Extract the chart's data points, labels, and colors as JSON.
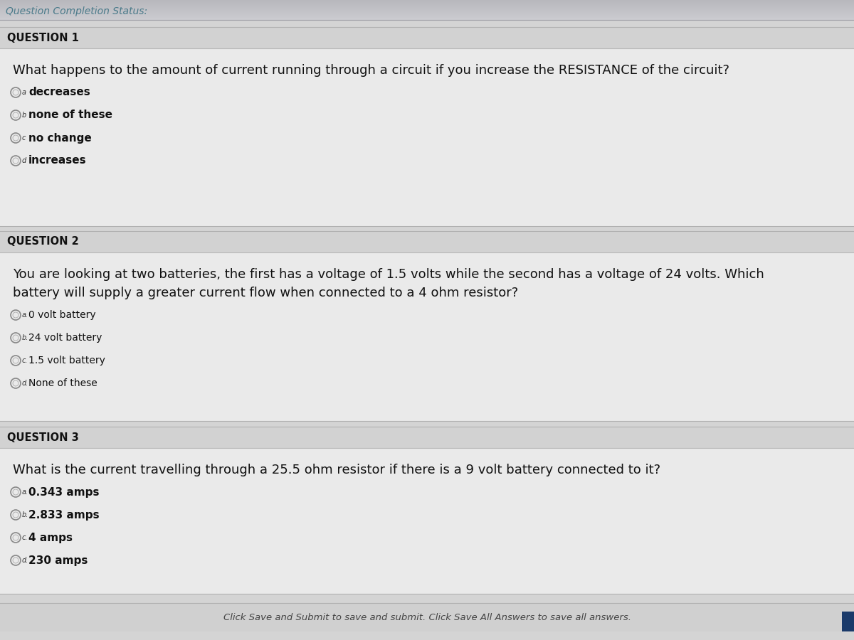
{
  "bg_color": "#d4d4d4",
  "header_bg": "#c0c0c8",
  "header_text": "Question Completion Status:",
  "header_font_size": 10,
  "title_bar_bg": "#d0d0d0",
  "content_bg": "#e8e8e8",
  "section_line_color": "#b0b0b0",
  "questions": [
    {
      "title": "QUESTION 1",
      "question_text": "What happens to the amount of current running through a circuit if you increase the RESISTANCE of the circuit?",
      "options": [
        {
          "label": "a",
          "text": "decreases",
          "bold": true
        },
        {
          "label": "b",
          "text": "none of these",
          "bold": true
        },
        {
          "label": "c",
          "text": "no change",
          "bold": true
        },
        {
          "label": "d",
          "text": "increases",
          "bold": true
        }
      ]
    },
    {
      "title": "QUESTION 2",
      "question_text_lines": [
        "You are looking at two batteries, the first has a voltage of 1.5 volts while the second has a voltage of 24 volts. Which",
        "battery will supply a greater current flow when connected to a 4 ohm resistor?"
      ],
      "options": [
        {
          "label": "a.",
          "text": "0 volt battery",
          "bold": false
        },
        {
          "label": "b.",
          "text": "24 volt battery",
          "bold": false
        },
        {
          "label": "c.",
          "text": "1.5 volt battery",
          "bold": false
        },
        {
          "label": "d.",
          "text": "None of these",
          "bold": false
        }
      ]
    },
    {
      "title": "QUESTION 3",
      "question_text_lines": [
        "What is the current travelling through a 25.5 ohm resistor if there is a 9 volt battery connected to it?"
      ],
      "options": [
        {
          "label": "a.",
          "text": "0.343 amps",
          "bold": true
        },
        {
          "label": "b.",
          "text": "2.833 amps",
          "bold": true
        },
        {
          "label": "c.",
          "text": "4 amps",
          "bold": true
        },
        {
          "label": "d.",
          "text": "230 amps",
          "bold": true
        }
      ]
    }
  ],
  "footer_text": "Click Save and Submit to save and submit. Click Save All Answers to save all answers.",
  "title_fontsize": 10.5,
  "question_fontsize": 13,
  "option_fontsize": 11,
  "footer_fontsize": 9.5,
  "header_color": "#4a7a8a"
}
